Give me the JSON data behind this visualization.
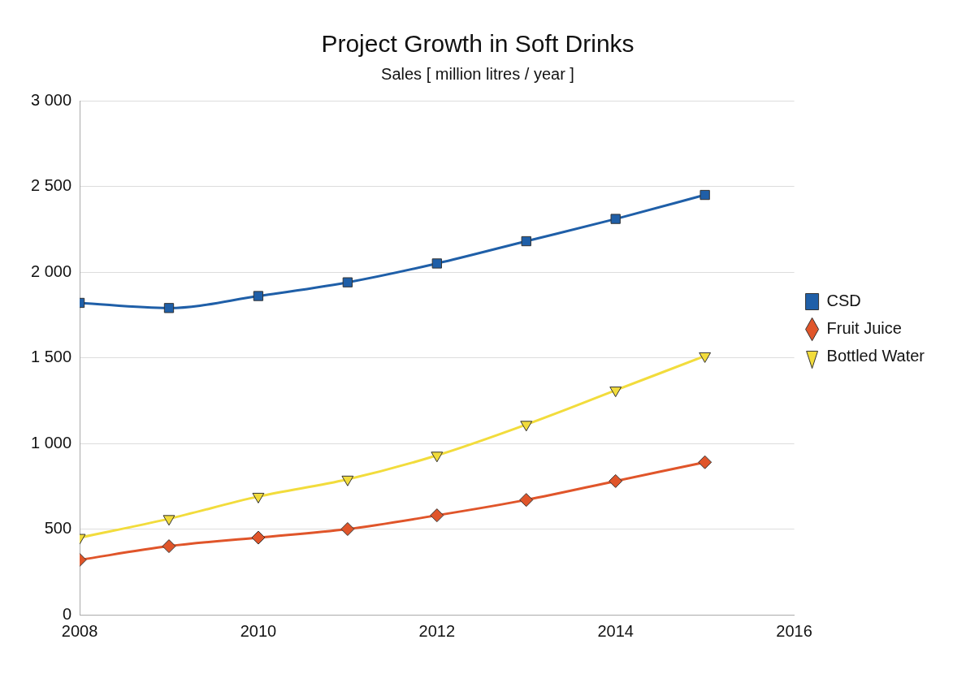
{
  "chart_data": {
    "type": "line",
    "title": "Project Growth in Soft Drinks",
    "subtitle": "Sales [ million litres / year ]",
    "x": [
      2008,
      2009,
      2010,
      2011,
      2012,
      2013,
      2014,
      2015
    ],
    "series": [
      {
        "name": "CSD",
        "color": "#1f5fa8",
        "marker": "square",
        "values": [
          1820,
          1790,
          1860,
          1940,
          2050,
          2180,
          2310,
          2450
        ]
      },
      {
        "name": "Fruit Juice",
        "color": "#e0552a",
        "marker": "diamond",
        "values": [
          320,
          400,
          450,
          500,
          580,
          670,
          780,
          890
        ]
      },
      {
        "name": "Bottled Water",
        "color": "#f2dc3c",
        "marker": "triangle",
        "values": [
          450,
          560,
          690,
          790,
          930,
          1110,
          1310,
          1510
        ]
      }
    ],
    "xlim": [
      2008,
      2016
    ],
    "xticks": [
      2008,
      2010,
      2012,
      2014,
      2016
    ],
    "ylim": [
      0,
      3000
    ],
    "yticks": [
      0,
      500,
      {
        "value": 1000,
        "label": "1 000"
      },
      {
        "value": 1500,
        "label": "1 500"
      },
      {
        "value": 2000,
        "label": "2 000"
      },
      {
        "value": 2500,
        "label": "2 500"
      },
      {
        "value": 3000,
        "label": "3 000"
      }
    ],
    "grid": "y",
    "legend": "right"
  }
}
